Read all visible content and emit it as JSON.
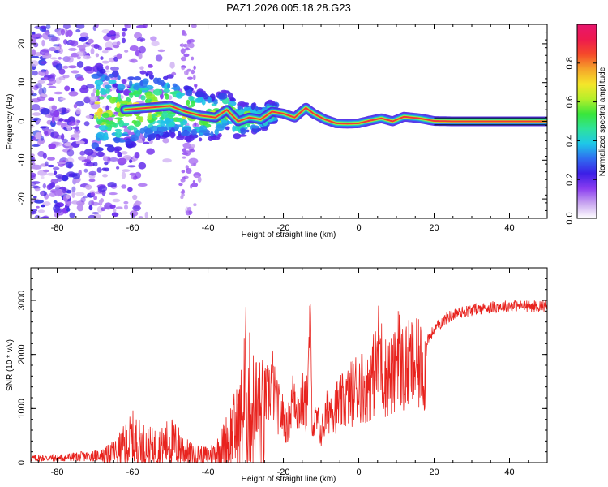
{
  "title": "PAZ1.2026.005.18.28.G23",
  "colors": {
    "snr_line": "#e8231e",
    "frame": "#000000",
    "ridge": "#ff2a3a",
    "ridge_outline": "#2ac8b0"
  },
  "chart_data": [
    {
      "type": "heatmap",
      "name": "spectrogram",
      "xlabel": "Height of straight line (km)",
      "ylabel": "Frequency (Hz)",
      "xlim": [
        -87,
        50
      ],
      "ylim": [
        -25,
        25
      ],
      "x_ticks": [
        -80,
        -60,
        -40,
        -20,
        0,
        20,
        40
      ],
      "x_tick_labels": [
        "-80",
        "-60",
        "-40",
        "-20",
        "0",
        "20",
        "40"
      ],
      "y_ticks": [
        -20,
        -10,
        0,
        10,
        20
      ],
      "y_tick_labels": [
        "-20",
        "-10",
        "0",
        "10",
        "20"
      ],
      "ridge": {
        "description_values": "dominant frequency (Hz) vs height (km)",
        "x": [
          -62,
          -56,
          -50,
          -46,
          -42,
          -38,
          -35,
          -32,
          -29,
          -26,
          -23,
          -20,
          -17,
          -14,
          -12,
          -9,
          -6,
          -3,
          0,
          3,
          6,
          9,
          12,
          16,
          20,
          25,
          50
        ],
        "y": [
          3.0,
          3.5,
          4.0,
          2.5,
          1.5,
          1.0,
          3.0,
          0.0,
          1.0,
          0.5,
          2.5,
          2.0,
          1.0,
          3.5,
          2.0,
          0.5,
          -0.5,
          -0.6,
          -0.5,
          0.2,
          0.8,
          0.0,
          1.2,
          0.8,
          0.1,
          0.0,
          0.0
        ]
      },
      "colorbar": {
        "label": "Normalized spectral amplitude",
        "range": [
          0.0,
          1.0
        ],
        "ticks": [
          0.0,
          0.2,
          0.4,
          0.6,
          0.8
        ],
        "tick_labels": [
          "0.0",
          "0.2",
          "0.4",
          "0.6",
          "0.8"
        ],
        "colormap": [
          "#ffffff",
          "#c9a6f0",
          "#8a3df0",
          "#3c1fe6",
          "#2f6df0",
          "#1ec8e8",
          "#2ee39a",
          "#39e63a",
          "#b5ef2a",
          "#f5e62a",
          "#f5a42a",
          "#f54a2a",
          "#ee1a4e",
          "#e8166e"
        ]
      }
    },
    {
      "type": "line",
      "name": "snr",
      "xlabel": "Height of straight line (km)",
      "ylabel": "SNR (10 * v/v)",
      "xlim": [
        -87,
        50
      ],
      "ylim": [
        0,
        3600
      ],
      "x_ticks": [
        -80,
        -60,
        -40,
        -20,
        0,
        20,
        40
      ],
      "x_tick_labels": [
        "-80",
        "-60",
        "-40",
        "-20",
        "0",
        "20",
        "40"
      ],
      "y_ticks": [
        0,
        1000,
        2000,
        3000
      ],
      "y_tick_labels": [
        "0",
        "1000",
        "2000",
        "3000"
      ],
      "series": [
        {
          "name": "SNR envelope",
          "x": [
            -87,
            -80,
            -75,
            -70,
            -67,
            -64,
            -62,
            -60,
            -58,
            -55,
            -52,
            -50,
            -48,
            -45,
            -42,
            -40,
            -38,
            -36,
            -34,
            -32,
            -31,
            -30,
            -29,
            -28,
            -26,
            -24,
            -23,
            -22,
            -20,
            -19,
            -18,
            -17,
            -16,
            -15,
            -14,
            -13.2,
            -13,
            -12.5,
            -12,
            -11,
            -10,
            -8,
            -6,
            -4,
            -2,
            0,
            2,
            4,
            5,
            5.5,
            6,
            7,
            8,
            9,
            10,
            10.6,
            11,
            12,
            14,
            16,
            18,
            20,
            22,
            24,
            26,
            30,
            35,
            40,
            45,
            50
          ],
          "y": [
            120,
            130,
            160,
            190,
            230,
            380,
            560,
            750,
            620,
            500,
            520,
            700,
            560,
            300,
            260,
            240,
            330,
            560,
            900,
            1150,
            1500,
            2300,
            1900,
            1700,
            1500,
            1600,
            2000,
            1400,
            1100,
            800,
            1300,
            1700,
            1250,
            1500,
            1300,
            2200,
            3500,
            1400,
            900,
            1000,
            700,
            1300,
            1350,
            1450,
            1650,
            1900,
            1800,
            2100,
            2350,
            2850,
            2400,
            2050,
            2150,
            2000,
            2300,
            3300,
            2400,
            2200,
            2350,
            2300,
            2250,
            2450,
            2600,
            2700,
            2760,
            2820,
            2870,
            2900,
            2890,
            2900
          ]
        }
      ]
    }
  ]
}
